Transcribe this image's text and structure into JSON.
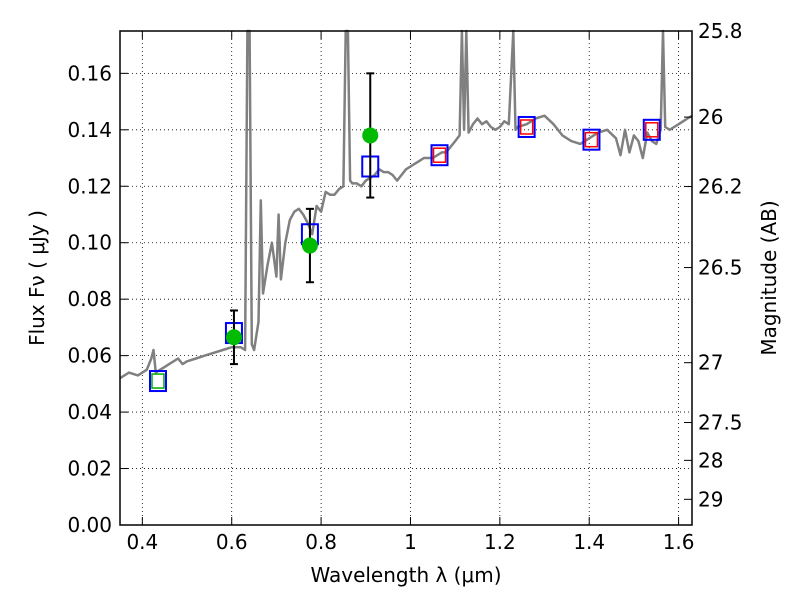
{
  "chart_data": {
    "type": "line",
    "title": "",
    "xlabel": "Wavelength  λ (μm)",
    "ylabel": "Flux  Fν  ( μJy )",
    "ylabel_right": "Magnitude (AB)",
    "xlim": [
      0.35,
      1.63
    ],
    "ylim": [
      0.0,
      0.175
    ],
    "grid": true,
    "x_ticks": [
      0.4,
      0.6,
      0.8,
      1.0,
      1.2,
      1.4,
      1.6
    ],
    "x_tick_labels": [
      "0.4",
      "0.6",
      "0.8",
      "1",
      "1.2",
      "1.4",
      "1.6"
    ],
    "y_ticks": [
      0.0,
      0.02,
      0.04,
      0.06,
      0.08,
      0.1,
      0.12,
      0.14,
      0.16
    ],
    "y_tick_labels": [
      "0.00",
      "0.02",
      "0.04",
      "0.06",
      "0.08",
      "0.10",
      "0.12",
      "0.14",
      "0.16"
    ],
    "right_ticks": [
      {
        "label": "25.8",
        "flux": 0.175
      },
      {
        "label": "26",
        "flux": 0.1445
      },
      {
        "label": "26.2",
        "flux": 0.1199
      },
      {
        "label": "26.5",
        "flux": 0.0912
      },
      {
        "label": "27",
        "flux": 0.0575
      },
      {
        "label": "27.5",
        "flux": 0.0363
      },
      {
        "label": "28",
        "flux": 0.0229
      },
      {
        "label": "29",
        "flux": 0.0091
      }
    ],
    "series": [
      {
        "kind": "spectrum",
        "color": "#808080",
        "points": [
          [
            0.35,
            0.052
          ],
          [
            0.37,
            0.054
          ],
          [
            0.39,
            0.053
          ],
          [
            0.41,
            0.055
          ],
          [
            0.42,
            0.059
          ],
          [
            0.425,
            0.062
          ],
          [
            0.43,
            0.054
          ],
          [
            0.44,
            0.055
          ],
          [
            0.45,
            0.056
          ],
          [
            0.46,
            0.057
          ],
          [
            0.47,
            0.058
          ],
          [
            0.48,
            0.059
          ],
          [
            0.49,
            0.057
          ],
          [
            0.5,
            0.058
          ],
          [
            0.52,
            0.059
          ],
          [
            0.54,
            0.06
          ],
          [
            0.56,
            0.061
          ],
          [
            0.58,
            0.062
          ],
          [
            0.6,
            0.063
          ],
          [
            0.62,
            0.063
          ],
          [
            0.63,
            0.062
          ],
          [
            0.635,
            0.175
          ],
          [
            0.64,
            0.175
          ],
          [
            0.645,
            0.064
          ],
          [
            0.65,
            0.062
          ],
          [
            0.66,
            0.072
          ],
          [
            0.665,
            0.115
          ],
          [
            0.67,
            0.082
          ],
          [
            0.68,
            0.092
          ],
          [
            0.69,
            0.1
          ],
          [
            0.7,
            0.088
          ],
          [
            0.705,
            0.11
          ],
          [
            0.71,
            0.087
          ],
          [
            0.72,
            0.1
          ],
          [
            0.73,
            0.108
          ],
          [
            0.74,
            0.111
          ],
          [
            0.75,
            0.112
          ],
          [
            0.76,
            0.11
          ],
          [
            0.77,
            0.107
          ],
          [
            0.78,
            0.103
          ],
          [
            0.79,
            0.113
          ],
          [
            0.8,
            0.111
          ],
          [
            0.81,
            0.118
          ],
          [
            0.82,
            0.117
          ],
          [
            0.83,
            0.117
          ],
          [
            0.84,
            0.119
          ],
          [
            0.85,
            0.12
          ],
          [
            0.855,
            0.175
          ],
          [
            0.86,
            0.175
          ],
          [
            0.865,
            0.122
          ],
          [
            0.87,
            0.121
          ],
          [
            0.88,
            0.121
          ],
          [
            0.89,
            0.12
          ],
          [
            0.9,
            0.122
          ],
          [
            0.91,
            0.123
          ],
          [
            0.92,
            0.124
          ],
          [
            0.93,
            0.126
          ],
          [
            0.94,
            0.125
          ],
          [
            0.95,
            0.125
          ],
          [
            0.96,
            0.124
          ],
          [
            0.97,
            0.122
          ],
          [
            0.98,
            0.124
          ],
          [
            0.99,
            0.126
          ],
          [
            1.0,
            0.127
          ],
          [
            1.01,
            0.128
          ],
          [
            1.02,
            0.129
          ],
          [
            1.03,
            0.13
          ],
          [
            1.04,
            0.13
          ],
          [
            1.05,
            0.13
          ],
          [
            1.06,
            0.131
          ],
          [
            1.07,
            0.132
          ],
          [
            1.08,
            0.132
          ],
          [
            1.09,
            0.134
          ],
          [
            1.1,
            0.136
          ],
          [
            1.11,
            0.138
          ],
          [
            1.115,
            0.175
          ],
          [
            1.12,
            0.14
          ],
          [
            1.125,
            0.175
          ],
          [
            1.13,
            0.139
          ],
          [
            1.14,
            0.142
          ],
          [
            1.15,
            0.144
          ],
          [
            1.16,
            0.142
          ],
          [
            1.17,
            0.143
          ],
          [
            1.18,
            0.141
          ],
          [
            1.19,
            0.14
          ],
          [
            1.2,
            0.141
          ],
          [
            1.21,
            0.143
          ],
          [
            1.22,
            0.142
          ],
          [
            1.23,
            0.175
          ],
          [
            1.235,
            0.14
          ],
          [
            1.24,
            0.141
          ],
          [
            1.26,
            0.142
          ],
          [
            1.28,
            0.144
          ],
          [
            1.3,
            0.145
          ],
          [
            1.32,
            0.142
          ],
          [
            1.34,
            0.138
          ],
          [
            1.36,
            0.136
          ],
          [
            1.38,
            0.135
          ],
          [
            1.4,
            0.137
          ],
          [
            1.42,
            0.139
          ],
          [
            1.44,
            0.14
          ],
          [
            1.46,
            0.137
          ],
          [
            1.47,
            0.131
          ],
          [
            1.48,
            0.14
          ],
          [
            1.49,
            0.132
          ],
          [
            1.5,
            0.138
          ],
          [
            1.51,
            0.136
          ],
          [
            1.52,
            0.13
          ],
          [
            1.53,
            0.139
          ],
          [
            1.54,
            0.136
          ],
          [
            1.55,
            0.135
          ],
          [
            1.56,
            0.14
          ],
          [
            1.565,
            0.175
          ],
          [
            1.57,
            0.141
          ],
          [
            1.58,
            0.14
          ],
          [
            1.59,
            0.141
          ],
          [
            1.6,
            0.142
          ],
          [
            1.61,
            0.143
          ],
          [
            1.62,
            0.144
          ],
          [
            1.63,
            0.145
          ]
        ]
      },
      {
        "kind": "blue-squares",
        "color": "#0000ff",
        "x": [
          0.435,
          0.605,
          0.775,
          0.91,
          1.065,
          1.26,
          1.405,
          1.54
        ],
        "values": [
          0.051,
          0.068,
          0.103,
          0.127,
          0.131,
          0.141,
          0.1365,
          0.14
        ]
      },
      {
        "kind": "red-squares",
        "color": "#ff0000",
        "x": [
          1.065,
          1.26,
          1.405,
          1.54
        ],
        "values": [
          0.131,
          0.141,
          0.1365,
          0.14
        ]
      },
      {
        "kind": "green-inner-squares",
        "color": "#00aa00",
        "x": [
          0.435
        ],
        "values": [
          0.051
        ]
      },
      {
        "kind": "green-points",
        "color": "#00bb00",
        "x": [
          0.605,
          0.775,
          0.91
        ],
        "values": [
          0.0665,
          0.099,
          0.138
        ],
        "err_low": [
          0.057,
          0.086,
          0.116
        ],
        "err_high": [
          0.076,
          0.112,
          0.16
        ]
      }
    ]
  }
}
